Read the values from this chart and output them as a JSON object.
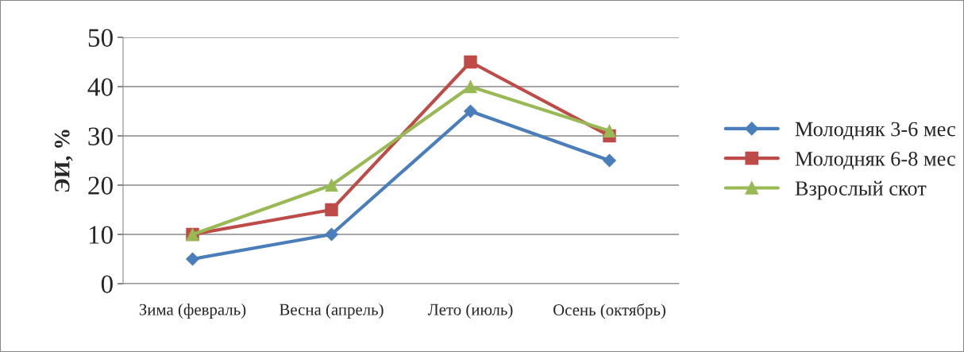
{
  "chart_data": {
    "type": "line",
    "ylabel": "ЭИ, %",
    "categories": [
      "Зима (февраль)",
      "Весна (апрель)",
      "Лето (июль)",
      "Осень (октябрь)"
    ],
    "series": [
      {
        "name": "Молодняк 3-6 мес",
        "color": "#4a7ebb",
        "marker": "diamond",
        "values": [
          5,
          10,
          35,
          25
        ]
      },
      {
        "name": "Молодняк 6-8 мес",
        "color": "#be4b48",
        "marker": "square",
        "values": [
          10,
          15,
          45,
          30
        ]
      },
      {
        "name": "Взрослый скот",
        "color": "#98b954",
        "marker": "triangle",
        "values": [
          10,
          20,
          40,
          31
        ]
      }
    ],
    "ylim": [
      0,
      50
    ],
    "yticks": [
      0,
      10,
      20,
      30,
      40,
      50
    ],
    "grid": "y",
    "legend": "right",
    "line_style": "solid"
  }
}
